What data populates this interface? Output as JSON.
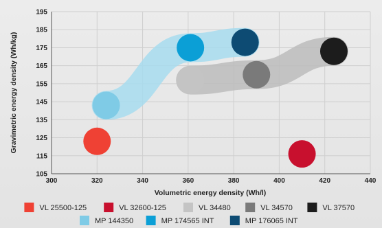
{
  "chart_data": {
    "type": "scatter",
    "xlabel": "Volumetric energy density (Wh/l)",
    "ylabel": "Gravimetric energy density (Wh/kg)",
    "xlim": [
      300,
      440
    ],
    "ylim": [
      105,
      195
    ],
    "x_ticks": [
      300,
      320,
      340,
      360,
      380,
      400,
      420,
      440
    ],
    "y_ticks": [
      105,
      115,
      125,
      135,
      145,
      155,
      165,
      175,
      185,
      195
    ],
    "grid": true,
    "legend_position": "bottom",
    "series": [
      {
        "name": "VL 25500-125",
        "color": "#ef4134",
        "points": [
          [
            320,
            123
          ]
        ]
      },
      {
        "name": "VL 32600-125",
        "color": "#c8102e",
        "points": [
          [
            410,
            116
          ]
        ]
      },
      {
        "name": "VL 34480",
        "color": "#c4c4c4",
        "points": [
          [
            361,
            157
          ]
        ]
      },
      {
        "name": "VL 34570",
        "color": "#7a7a7a",
        "points": [
          [
            390,
            160
          ]
        ]
      },
      {
        "name": "VL 37570",
        "color": "#1c1c1c",
        "points": [
          [
            424,
            173
          ]
        ]
      },
      {
        "name": "MP 144350",
        "color": "#7fcbe6",
        "points": [
          [
            324,
            143
          ]
        ]
      },
      {
        "name": "MP 174565 INT",
        "color": "#0b9fd6",
        "points": [
          [
            361,
            175
          ]
        ]
      },
      {
        "name": "MP 176065 INT",
        "color": "#0d4b73",
        "points": [
          [
            385,
            178
          ]
        ]
      }
    ],
    "groups": [
      {
        "name": "MP",
        "color": "#a7dcef",
        "members": [
          "MP 144350",
          "MP 174565 INT",
          "MP 176065 INT"
        ]
      },
      {
        "name": "VL",
        "color": "#bcbcbc",
        "members": [
          "VL 34480",
          "VL 34570",
          "VL 37570"
        ]
      }
    ]
  }
}
